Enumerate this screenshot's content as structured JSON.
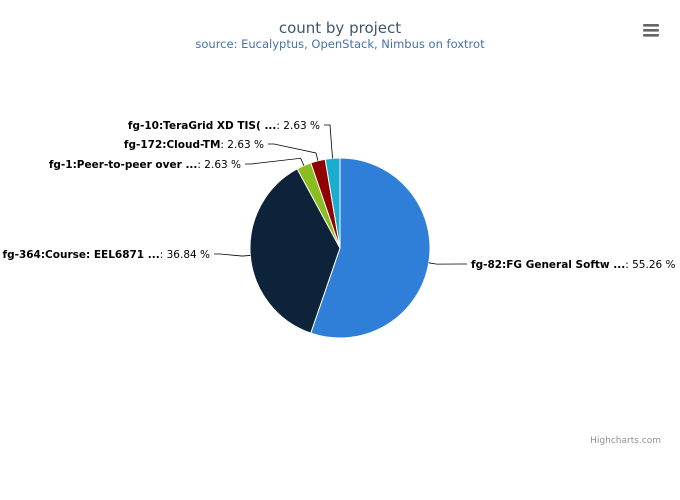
{
  "chart_data": {
    "type": "pie",
    "title": "count by project",
    "subtitle": "source: Eucalyptus, OpenStack, Nimbus on foxtrot",
    "slices": [
      {
        "name": "fg-82:FG General Softw ...",
        "value_label": "55.26 %",
        "value": 55.26,
        "color": "#2f7ed8"
      },
      {
        "name": "fg-364:Course: EEL6871 ...",
        "value_label": "36.84 %",
        "value": 36.84,
        "color": "#0d233a"
      },
      {
        "name": "fg-1:Peer-to-peer over ...",
        "value_label": "2.63 %",
        "value": 2.63,
        "color": "#8bbc21"
      },
      {
        "name": "fg-172:Cloud-TM",
        "value_label": "2.63 %",
        "value": 2.63,
        "color": "#910000"
      },
      {
        "name": "fg-10:TeraGrid XD TIS( ...",
        "value_label": "2.63 %",
        "value": 2.63,
        "color": "#1aadce"
      }
    ],
    "legend": false
  },
  "credits": "Highcharts.com",
  "icons": {
    "menu": "menu-icon"
  }
}
